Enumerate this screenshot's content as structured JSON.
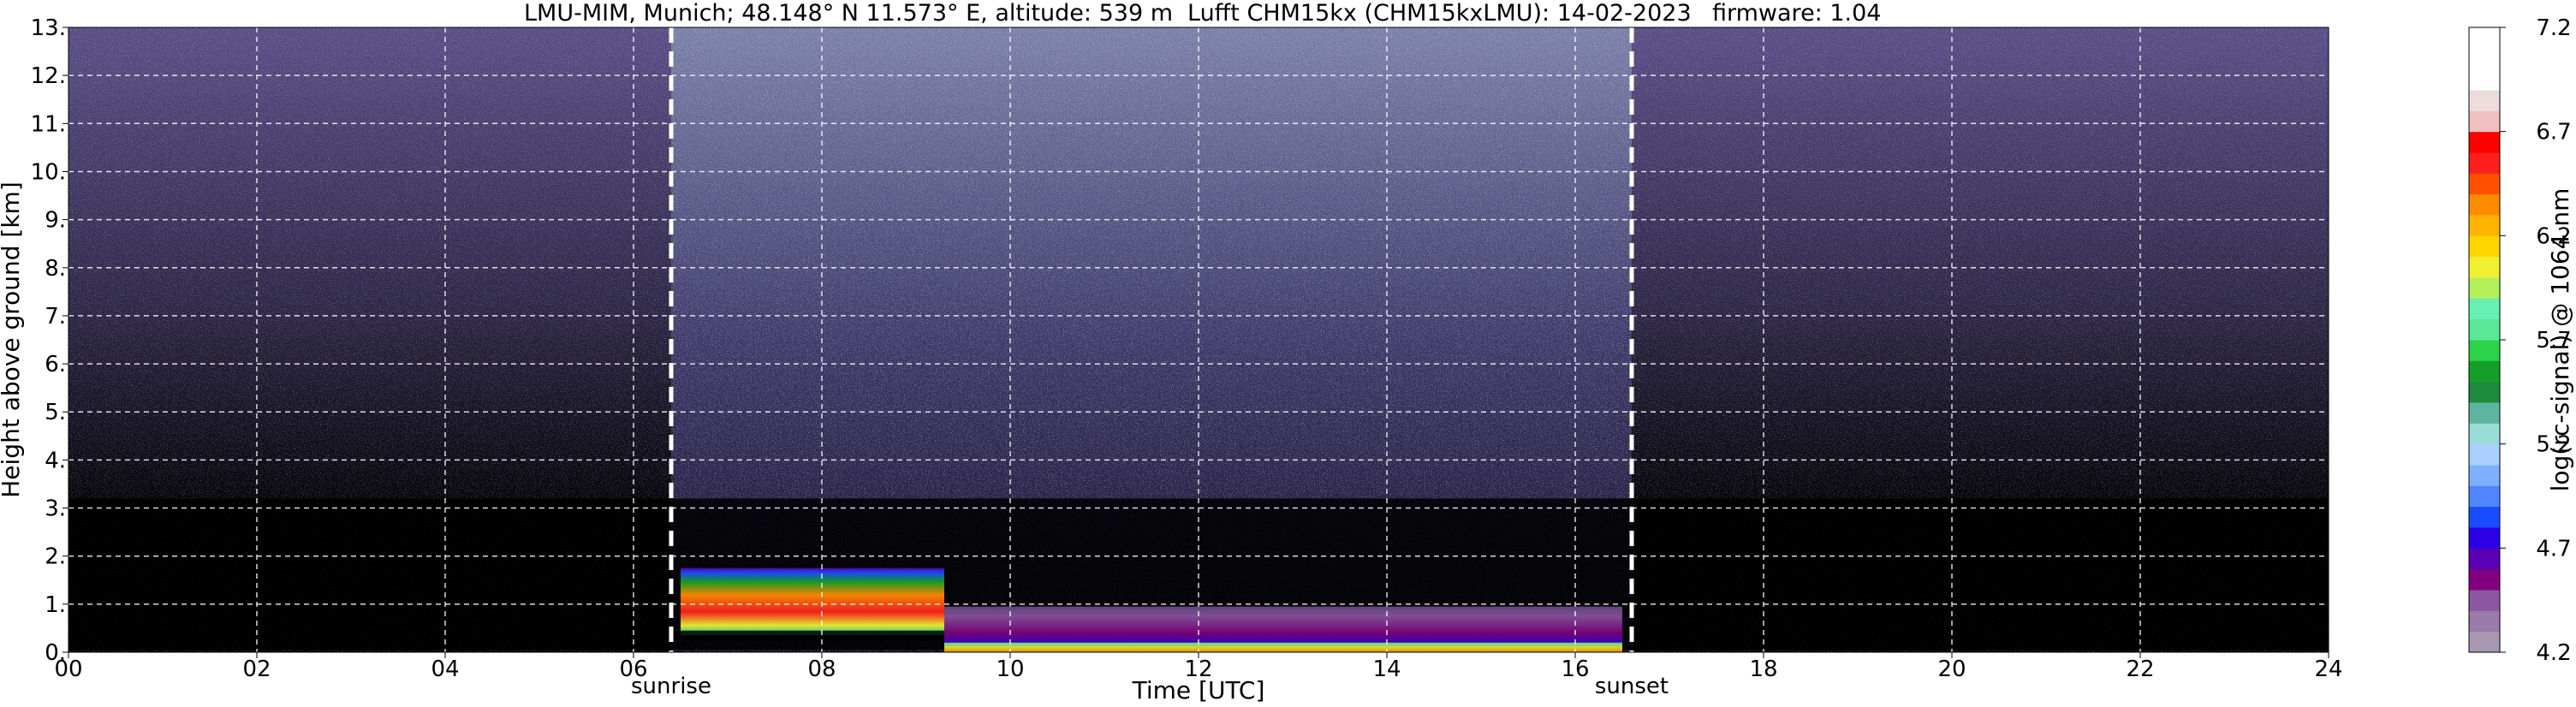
{
  "title": {
    "station": "LMU-MIM, Munich; 48.148° N 11.573° E, altitude: 539 m",
    "instrument": "Lufft CHM15kx (CHM15kxLMU): 14-02-2023",
    "firmware": "firmware: 1.04"
  },
  "chart_data": {
    "type": "heatmap",
    "xlabel": "Time [UTC]",
    "ylabel": "Height above ground [km]",
    "xlim": [
      0,
      24
    ],
    "ylim": [
      0,
      13
    ],
    "x_ticks": [
      "00",
      "02",
      "04",
      "06",
      "08",
      "10",
      "12",
      "14",
      "16",
      "18",
      "20",
      "22",
      "24"
    ],
    "y_ticks": [
      "0.",
      "1.",
      "2.",
      "3.",
      "4.",
      "5.",
      "6.",
      "7.",
      "8.",
      "9.",
      "10.",
      "11.",
      "12.",
      "13."
    ],
    "grid": true,
    "markers": [
      {
        "label": "sunrise",
        "x": 6.4
      },
      {
        "label": "sunset",
        "x": 16.6
      }
    ],
    "features": [
      {
        "x_start": 6.5,
        "x_end": 9.3,
        "y_low": 0.35,
        "y_high": 1.75,
        "level": 5.9
      },
      {
        "x_start": 9.3,
        "x_end": 16.5,
        "y_low": 0.15,
        "y_high": 0.95,
        "level": 4.65
      },
      {
        "x_start": 9.3,
        "x_end": 16.5,
        "y_low": 0.0,
        "y_high": 0.2,
        "level": 5.7
      }
    ],
    "colorbar": {
      "label": "log(rc-signal) @ 1064 nm",
      "min": 4.2,
      "max": 7.2,
      "ticks": [
        "4.2",
        "4.7",
        "5.2",
        "5.7",
        "6.2",
        "6.7",
        "7.2"
      ],
      "colors": [
        "#a898b0",
        "#9a7aa8",
        "#8c56a0",
        "#800080",
        "#5a00b4",
        "#2b00e6",
        "#1a4cff",
        "#4f86ff",
        "#7fb0ff",
        "#aad0ff",
        "#9adcd8",
        "#5fb4a0",
        "#1e8c3c",
        "#14a028",
        "#2cd24a",
        "#5ae896",
        "#66f0b4",
        "#b4f05a",
        "#f0f032",
        "#ffd700",
        "#ffb400",
        "#ff8c00",
        "#ff5000",
        "#ff1e1e",
        "#ff0000",
        "#f0c0c0",
        "#ecdcdc",
        "#ffffff",
        "#ffffff",
        "#ffffff"
      ]
    }
  }
}
